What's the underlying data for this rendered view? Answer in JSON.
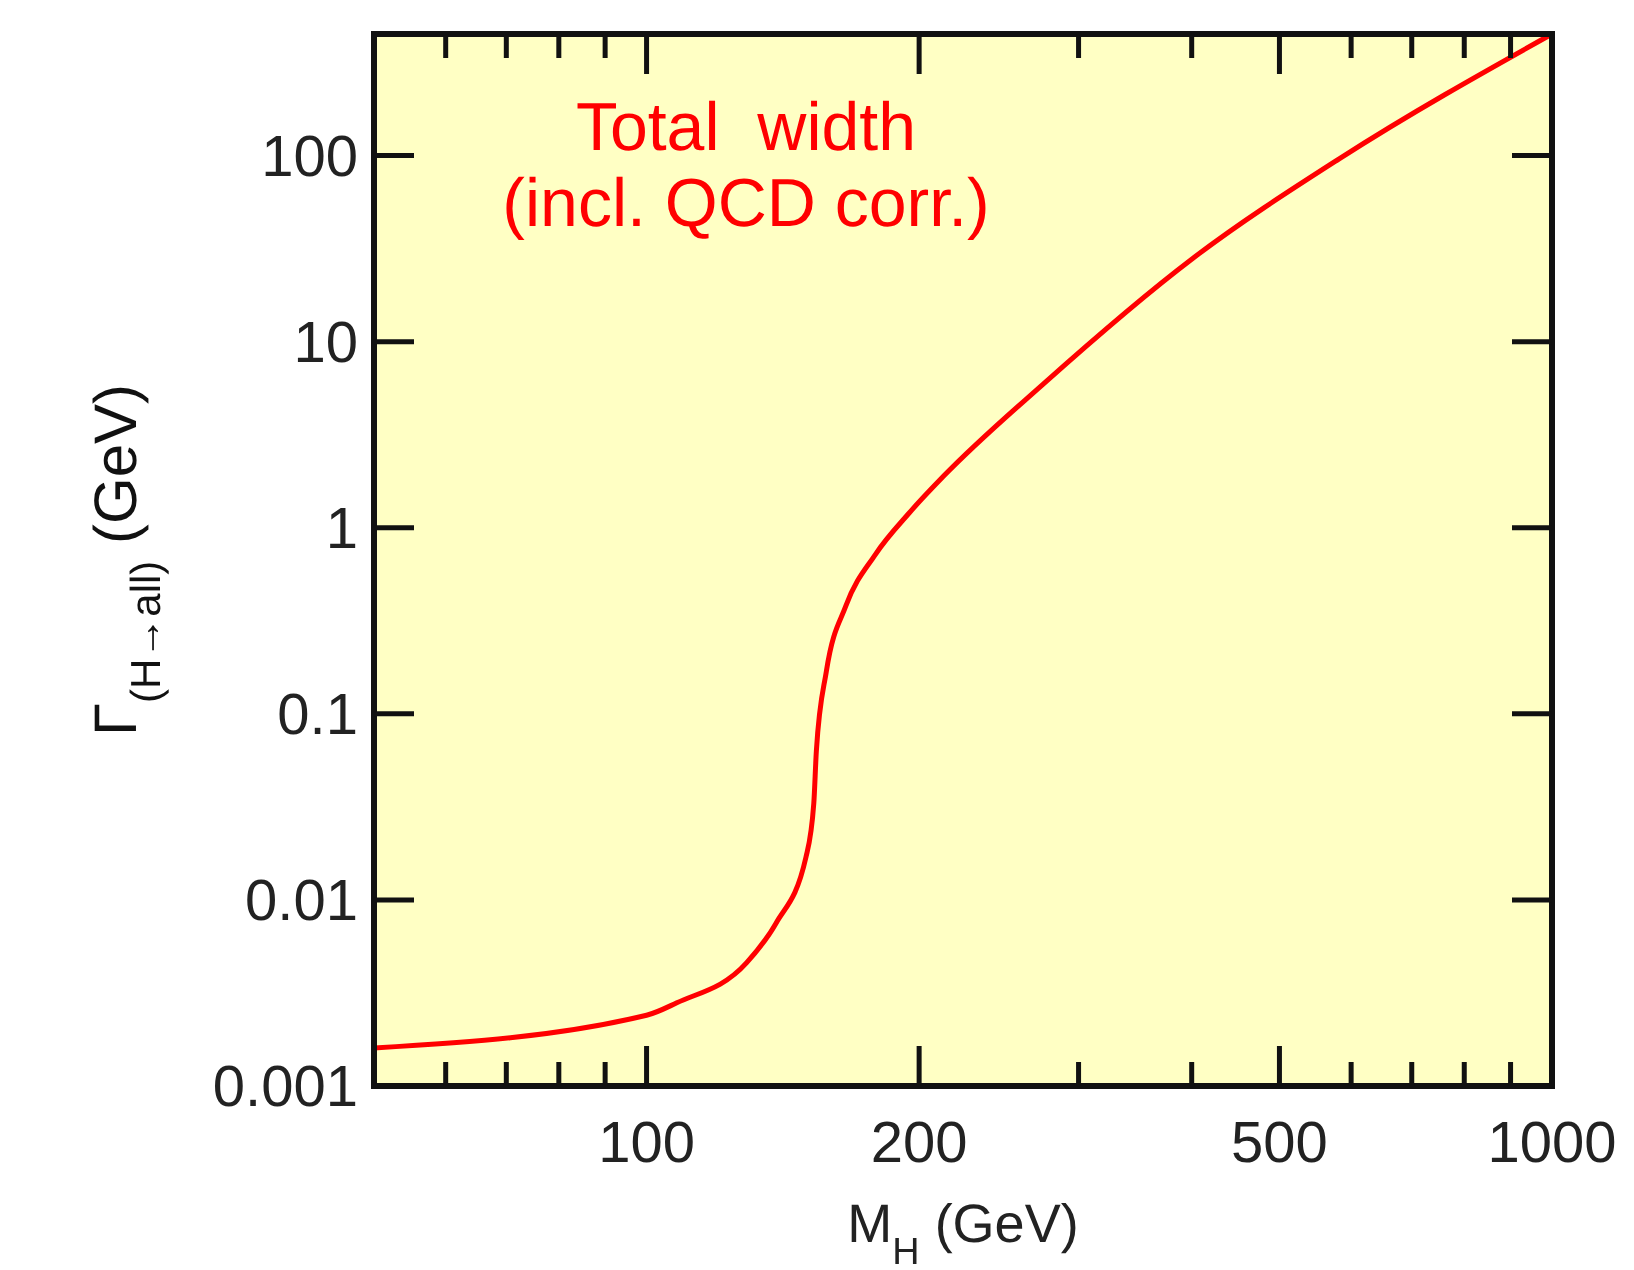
{
  "chart_data": {
    "type": "line",
    "xlabel": "M$_{H}$ (GeV)",
    "ylabel": "Γ$_{(H→all)}$ (GeV)",
    "log": "xy",
    "xlim": [
      50,
      1000
    ],
    "ylim": [
      0.001,
      450
    ],
    "xticks": [
      {
        "value": 60,
        "label": null
      },
      {
        "value": 70,
        "label": null
      },
      {
        "value": 80,
        "label": null
      },
      {
        "value": 90,
        "label": null
      },
      100,
      200,
      {
        "value": 300,
        "label": null
      },
      {
        "value": 400,
        "label": null
      },
      500,
      {
        "value": 600,
        "label": null
      },
      {
        "value": 700,
        "label": null
      },
      {
        "value": 800,
        "label": null
      },
      {
        "value": 900,
        "label": null
      },
      1000
    ],
    "yticks": [
      0.001,
      0.01,
      0.1,
      1,
      10,
      100
    ],
    "grid": false,
    "marker": "none",
    "line_style": "solid",
    "series": [
      {
        "name": "Total  width\n(incl. QCD corr.)",
        "color": "#ff0000",
        "x": [
          50,
          100,
          108,
          129,
          139,
          150,
          153,
          154,
          158,
          166,
          179,
          195,
          213,
          274,
          401,
          582,
          1000
        ],
        "values": [
          0.0016,
          0.0024,
          0.0028,
          0.0046,
          0.0075,
          0.017,
          0.033,
          0.063,
          0.17,
          0.38,
          0.72,
          1.2,
          1.9,
          5.9,
          28,
          96,
          450
        ]
      }
    ]
  }
}
